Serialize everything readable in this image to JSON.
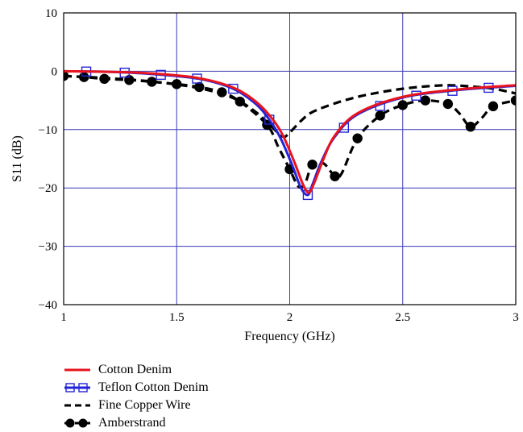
{
  "chart_data": {
    "type": "line",
    "xlabel": "Frequency (GHz)",
    "ylabel": "S11 (dB)",
    "xlim": [
      1,
      3
    ],
    "ylim": [
      -40,
      10
    ],
    "xticks": [
      1,
      1.5,
      2,
      2.5,
      3
    ],
    "xtick_labels": [
      "1",
      "1.5",
      "2",
      "2.5",
      "3"
    ],
    "yticks": [
      10,
      0,
      -10,
      -20,
      -30,
      -40
    ],
    "ytick_labels": [
      "10",
      "0",
      "−10",
      "−20",
      "−30",
      "−40"
    ],
    "grid": true,
    "legend_position": "below",
    "series": [
      {
        "name": "Cotton Denim",
        "color": "#e8141e",
        "style": "solid",
        "x": [
          1.0,
          1.2,
          1.4,
          1.6,
          1.75,
          1.85,
          1.92,
          1.97,
          2.02,
          2.06,
          2.085,
          2.11,
          2.15,
          2.2,
          2.3,
          2.5,
          2.75,
          3.0
        ],
        "y": [
          0.0,
          -0.1,
          -0.4,
          -1.2,
          -2.8,
          -5.2,
          -8.0,
          -11.0,
          -15.5,
          -19.5,
          -20.8,
          -19.0,
          -15.0,
          -11.0,
          -7.2,
          -4.4,
          -3.1,
          -2.4
        ]
      },
      {
        "name": "Teflon Cotton Denim",
        "color": "#2323d8",
        "style": "solid",
        "marker": "square-open",
        "marker_x": [
          1.1,
          1.27,
          1.43,
          1.59,
          1.75,
          1.91,
          2.08,
          2.24,
          2.4,
          2.56,
          2.72,
          2.88
        ],
        "x": [
          1.0,
          1.2,
          1.4,
          1.6,
          1.75,
          1.85,
          1.91,
          1.96,
          2.01,
          2.05,
          2.08,
          2.1,
          2.14,
          2.2,
          2.3,
          2.5,
          2.75,
          3.0
        ],
        "y": [
          0.0,
          -0.1,
          -0.5,
          -1.3,
          -3.0,
          -5.6,
          -8.3,
          -11.5,
          -16.0,
          -20.0,
          -21.2,
          -19.5,
          -15.5,
          -11.2,
          -7.4,
          -4.5,
          -3.2,
          -2.5
        ]
      },
      {
        "name": "Fine Copper Wire",
        "color": "#000000",
        "style": "dashed",
        "x": [
          1.0,
          1.2,
          1.4,
          1.6,
          1.75,
          1.85,
          1.92,
          1.97,
          2.0,
          2.05,
          2.1,
          2.2,
          2.3,
          2.4,
          2.5,
          2.6,
          2.7,
          2.8,
          2.9,
          3.0
        ],
        "y": [
          -0.8,
          -1.2,
          -1.8,
          -2.9,
          -4.6,
          -7.0,
          -9.5,
          -11.2,
          -10.5,
          -8.5,
          -7.0,
          -5.5,
          -4.4,
          -3.6,
          -3.0,
          -2.6,
          -2.4,
          -2.6,
          -3.0,
          -3.8
        ]
      },
      {
        "name": "Amberstrand",
        "color": "#000000",
        "style": "dashed",
        "marker": "circle-filled",
        "marker_x": [
          1.0,
          1.09,
          1.18,
          1.29,
          1.39,
          1.5,
          1.6,
          1.7,
          1.78,
          1.9,
          2.0,
          2.1,
          2.2,
          2.3,
          2.4,
          2.5,
          2.6,
          2.7,
          2.8,
          2.9,
          3.0
        ],
        "x": [
          1.0,
          1.09,
          1.18,
          1.29,
          1.39,
          1.5,
          1.6,
          1.7,
          1.78,
          1.9,
          1.95,
          2.0,
          2.04,
          2.07,
          2.1,
          2.15,
          2.2,
          2.23,
          2.3,
          2.4,
          2.5,
          2.6,
          2.7,
          2.75,
          2.8,
          2.85,
          2.9,
          3.0
        ],
        "y": [
          -0.8,
          -1.0,
          -1.3,
          -1.5,
          -1.8,
          -2.2,
          -2.7,
          -3.6,
          -5.2,
          -9.2,
          -13.0,
          -16.8,
          -19.8,
          -19.0,
          -16.0,
          -15.8,
          -18.0,
          -17.5,
          -11.5,
          -7.6,
          -5.8,
          -5.0,
          -5.6,
          -7.2,
          -9.5,
          -8.0,
          -6.0,
          -5.0
        ]
      }
    ]
  }
}
